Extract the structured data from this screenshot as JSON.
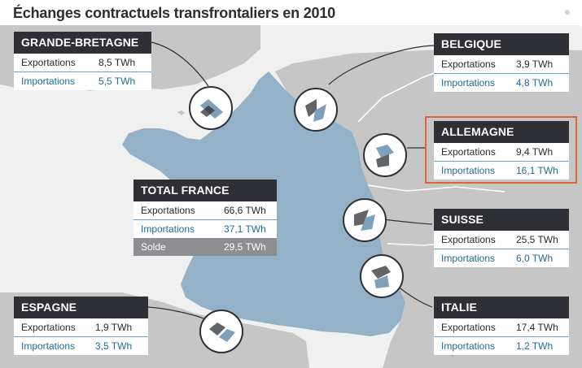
{
  "title": "Échanges contractuels transfrontaliers en 2010",
  "colors": {
    "sea": "#f0f0f0",
    "france": "#93b1c7",
    "neighbors": "#c6c6c6",
    "header": "#2f3035",
    "import_text": "#1f6a9a",
    "solde_bg": "#8d8e92",
    "highlight": "#d9663a"
  },
  "countries": {
    "grande_bretagne": {
      "name": "GRANDE-BRETAGNE",
      "exp_label": "Exportations",
      "exp_value": "8,5 TWh",
      "imp_label": "Importations",
      "imp_value": "5,5 TWh"
    },
    "belgique": {
      "name": "BELGIQUE",
      "exp_label": "Exportations",
      "exp_value": "3,9 TWh",
      "imp_label": "Importations",
      "imp_value": "4,8 TWh"
    },
    "allemagne": {
      "name": "ALLEMAGNE",
      "exp_label": "Exportations",
      "exp_value": "9,4 TWh",
      "imp_label": "Importations",
      "imp_value": "16,1 TWh"
    },
    "suisse": {
      "name": "SUISSE",
      "exp_label": "Exportations",
      "exp_value": "25,5 TWh",
      "imp_label": "Importations",
      "imp_value": "6,0 TWh"
    },
    "italie": {
      "name": "ITALIE",
      "exp_label": "Exportations",
      "exp_value": "17,4 TWh",
      "imp_label": "Importations",
      "imp_value": "1,2 TWh"
    },
    "espagne": {
      "name": "ESPAGNE",
      "exp_label": "Exportations",
      "exp_value": "1,9 TWh",
      "imp_label": "Importations",
      "imp_value": "3,5 TWh"
    }
  },
  "total": {
    "name": "TOTAL FRANCE",
    "exp_label": "Exportations",
    "exp_value": "66,6 TWh",
    "imp_label": "Importations",
    "imp_value": "37,1 TWh",
    "solde_label": "Solde",
    "solde_value": "29,5 TWh"
  },
  "icons": {
    "exchange": "exchange-arrows-icon"
  }
}
